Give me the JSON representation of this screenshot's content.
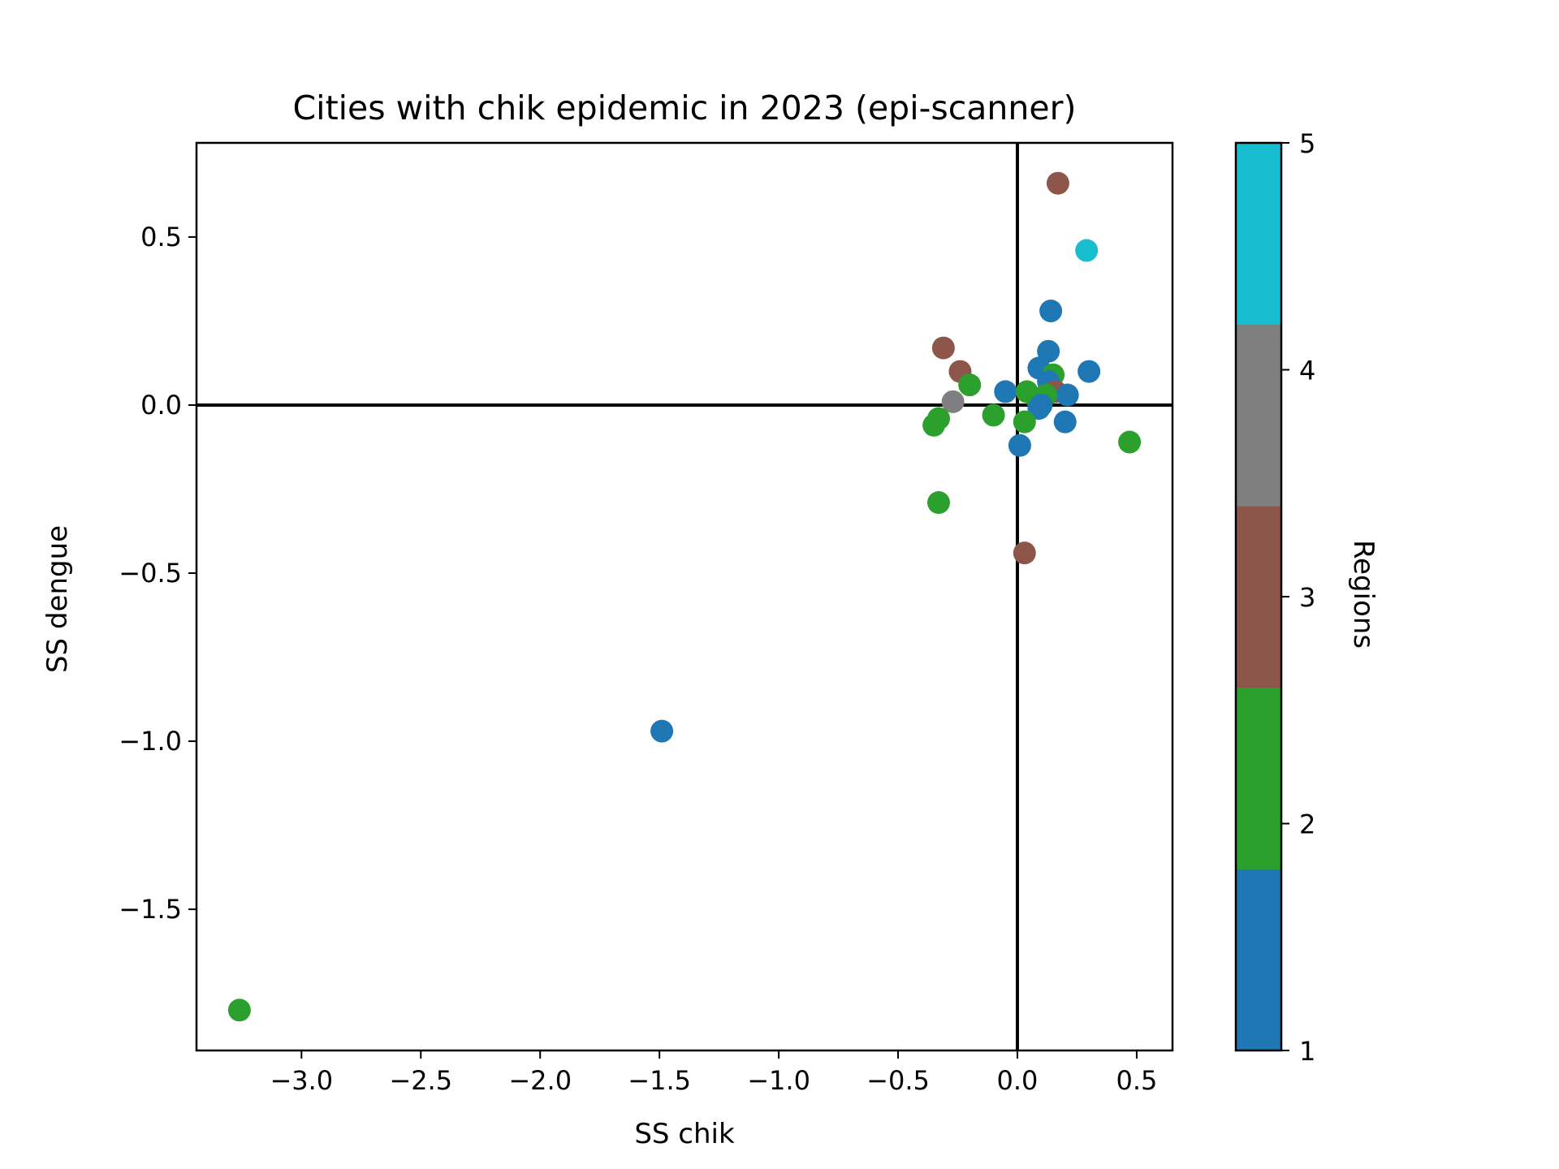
{
  "chart_data": {
    "type": "scatter",
    "title": "Cities with chik epidemic in 2023 (epi-scanner)",
    "xlabel": "SS chik",
    "ylabel": "SS dengue",
    "xlim": [
      -3.44,
      0.65
    ],
    "ylim": [
      -1.92,
      0.78
    ],
    "xticks": [
      -3.0,
      -2.5,
      -2.0,
      -1.5,
      -1.0,
      -0.5,
      0.0,
      0.5
    ],
    "yticks": [
      -1.5,
      -1.0,
      -0.5,
      0.0,
      0.5
    ],
    "xtick_labels": [
      "−3.0",
      "−2.5",
      "−2.0",
      "−1.5",
      "−1.0",
      "−0.5",
      "0.0",
      "0.5"
    ],
    "ytick_labels": [
      "−1.5",
      "−1.0",
      "−0.5",
      "0.0",
      "0.5"
    ],
    "reference_lines": {
      "x": 0.0,
      "y": 0.0
    },
    "colorbar": {
      "label": "Regions",
      "range": [
        1,
        5
      ],
      "ticks": [
        1,
        2,
        3,
        4,
        5
      ],
      "tick_labels": [
        "1",
        "2",
        "3",
        "4",
        "5"
      ],
      "colors": [
        "#1f77b4",
        "#2ca02c",
        "#8c564b",
        "#7f7f7f",
        "#17becf"
      ]
    },
    "points": [
      {
        "x": 0.17,
        "y": 0.66,
        "region": 3
      },
      {
        "x": 0.29,
        "y": 0.46,
        "region": 5
      },
      {
        "x": 0.14,
        "y": 0.28,
        "region": 1
      },
      {
        "x": -0.31,
        "y": 0.17,
        "region": 3
      },
      {
        "x": 0.13,
        "y": 0.16,
        "region": 1
      },
      {
        "x": -0.24,
        "y": 0.1,
        "region": 3
      },
      {
        "x": 0.3,
        "y": 0.1,
        "region": 1
      },
      {
        "x": 0.09,
        "y": 0.11,
        "region": 1
      },
      {
        "x": 0.15,
        "y": 0.09,
        "region": 2
      },
      {
        "x": 0.13,
        "y": 0.07,
        "region": 1
      },
      {
        "x": -0.2,
        "y": 0.06,
        "region": 2
      },
      {
        "x": -0.05,
        "y": 0.04,
        "region": 1
      },
      {
        "x": 0.16,
        "y": 0.04,
        "region": 3
      },
      {
        "x": 0.04,
        "y": 0.04,
        "region": 2
      },
      {
        "x": 0.21,
        "y": 0.03,
        "region": 1
      },
      {
        "x": 0.12,
        "y": 0.03,
        "region": 2
      },
      {
        "x": 0.08,
        "y": 0.02,
        "region": 2
      },
      {
        "x": -0.27,
        "y": 0.01,
        "region": 4
      },
      {
        "x": 0.1,
        "y": 0.0,
        "region": 1
      },
      {
        "x": 0.09,
        "y": -0.01,
        "region": 1
      },
      {
        "x": -0.1,
        "y": -0.03,
        "region": 2
      },
      {
        "x": -0.33,
        "y": -0.04,
        "region": 2
      },
      {
        "x": 0.03,
        "y": -0.05,
        "region": 2
      },
      {
        "x": 0.2,
        "y": -0.05,
        "region": 1
      },
      {
        "x": -0.35,
        "y": -0.06,
        "region": 2
      },
      {
        "x": 0.47,
        "y": -0.11,
        "region": 2
      },
      {
        "x": 0.01,
        "y": -0.12,
        "region": 1
      },
      {
        "x": -0.33,
        "y": -0.29,
        "region": 2
      },
      {
        "x": 0.03,
        "y": -0.44,
        "region": 3
      },
      {
        "x": -1.49,
        "y": -0.97,
        "region": 1
      },
      {
        "x": -3.26,
        "y": -1.8,
        "region": 2
      }
    ]
  }
}
